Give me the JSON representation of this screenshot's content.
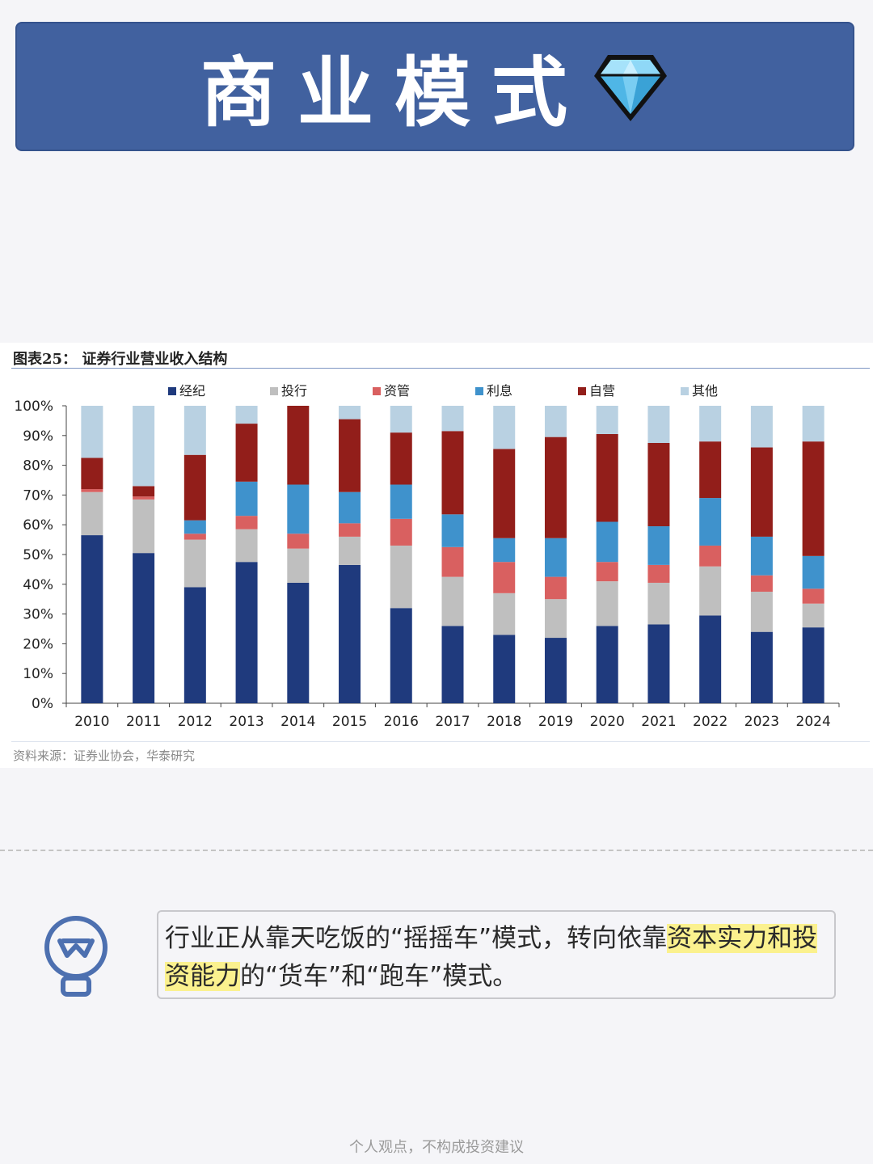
{
  "banner": {
    "title": "商业模式",
    "icon": "diamond-icon"
  },
  "figure": {
    "title": "图表25：  证券行业营业收入结构",
    "source": "资料来源：证券业协会，华泰研究"
  },
  "chart_data": {
    "type": "bar",
    "stacked": true,
    "categories": [
      "2010",
      "2011",
      "2012",
      "2013",
      "2014",
      "2015",
      "2016",
      "2017",
      "2018",
      "2019",
      "2020",
      "2021",
      "2022",
      "2023",
      "2024"
    ],
    "ylim": [
      0,
      100
    ],
    "yticks": [
      "0%",
      "10%",
      "20%",
      "30%",
      "40%",
      "50%",
      "60%",
      "70%",
      "80%",
      "90%",
      "100%"
    ],
    "legend_position": "top",
    "grid": false,
    "series": [
      {
        "name": "经纪",
        "color": "#1f3a7d",
        "values": [
          56.5,
          50.5,
          39,
          47.5,
          40.5,
          46.5,
          32,
          26,
          23,
          22,
          26,
          26.5,
          29.5,
          24,
          25.5
        ]
      },
      {
        "name": "投行",
        "color": "#bfbfbf",
        "values": [
          14.5,
          18,
          16,
          11,
          11.5,
          9.5,
          21,
          16.5,
          14,
          13,
          15,
          14,
          16.5,
          13.5,
          8
        ]
      },
      {
        "name": "资管",
        "color": "#d96060",
        "values": [
          1,
          1,
          2,
          4.5,
          5,
          4.5,
          9,
          10,
          10.5,
          7.5,
          6.5,
          6,
          7,
          5.5,
          5
        ]
      },
      {
        "name": "利息",
        "color": "#3f92cc",
        "values": [
          0,
          0,
          4.5,
          11.5,
          16.5,
          10.5,
          11.5,
          11,
          8,
          13,
          13.5,
          13,
          16,
          13,
          11
        ]
      },
      {
        "name": "自营",
        "color": "#921e1a",
        "values": [
          10.5,
          3.5,
          22,
          19.5,
          26.5,
          24.5,
          17.5,
          28,
          30,
          34,
          29.5,
          28,
          19,
          30,
          38.5
        ]
      },
      {
        "name": "其他",
        "color": "#b9d1e2",
        "values": [
          17.5,
          27,
          16.5,
          6,
          0,
          4.5,
          9,
          8.5,
          14.5,
          10.5,
          9.5,
          12.5,
          12,
          14,
          12
        ]
      }
    ]
  },
  "note": {
    "part1": "行业正从靠天吃饭的“摇摇车”模式，转向依靠",
    "highlight": "资本实力和投资能力",
    "part2": "的“货车”和“跑车”模式。"
  },
  "footer": {
    "disclaimer": "个人观点，不构成投资建议"
  }
}
